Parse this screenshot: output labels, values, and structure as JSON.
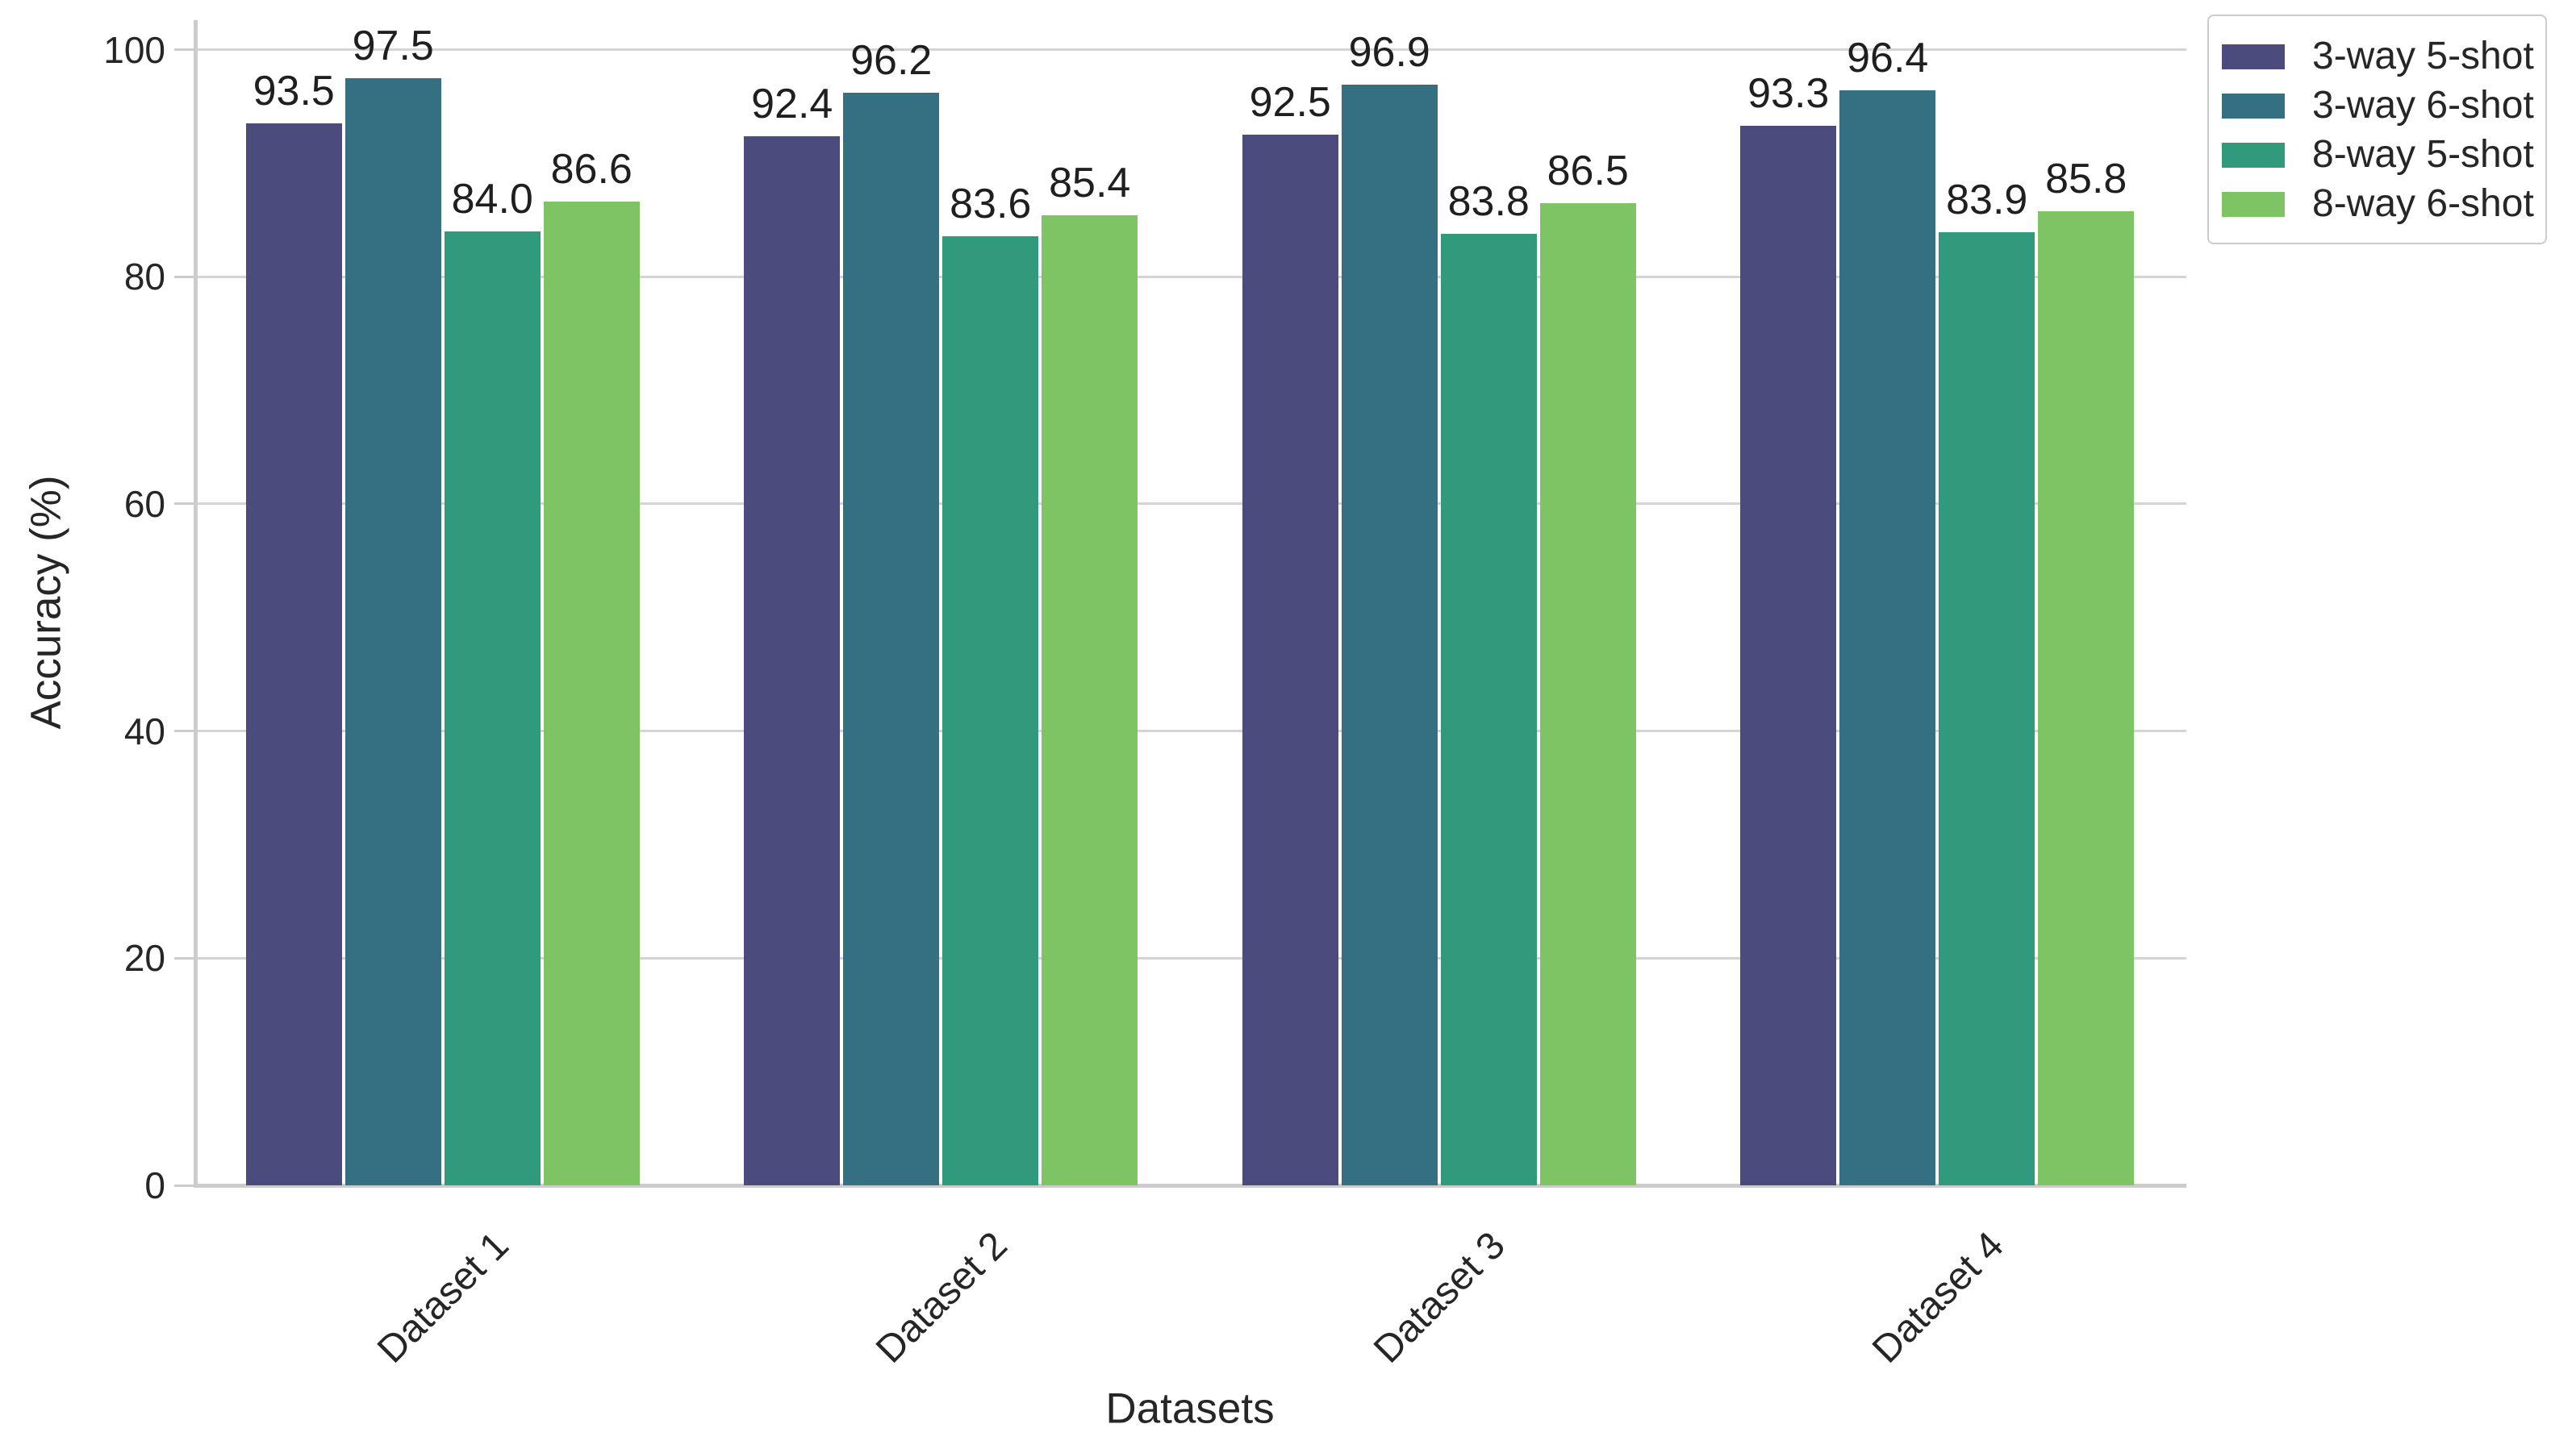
{
  "style": {
    "background": "#ffffff",
    "text_color": "#262626",
    "grid_color": "#d4d4d4",
    "spine_color": "#cccccc",
    "legend_border_color": "#cccccc"
  },
  "chart_data": {
    "type": "bar",
    "title": "",
    "xlabel": "Datasets",
    "ylabel": "Accuracy (%)",
    "categories": [
      "Dataset 1",
      "Dataset 2",
      "Dataset 3",
      "Dataset 4"
    ],
    "series": [
      {
        "name": "3-way 5-shot",
        "color": "#4c4b7e",
        "values": [
          93.5,
          92.4,
          92.5,
          93.3
        ],
        "labels": [
          "93.5",
          "92.4",
          "92.5",
          "93.3"
        ]
      },
      {
        "name": "3-way 6-shot",
        "color": "#357082",
        "values": [
          97.5,
          96.2,
          96.9,
          96.4
        ],
        "labels": [
          "97.5",
          "96.2",
          "96.9",
          "96.4"
        ]
      },
      {
        "name": "8-way 5-shot",
        "color": "#319a7d",
        "values": [
          84.0,
          83.6,
          83.8,
          83.9
        ],
        "labels": [
          "84.0",
          "83.6",
          "83.8",
          "83.9"
        ]
      },
      {
        "name": "8-way 6-shot",
        "color": "#7ec464",
        "values": [
          86.6,
          85.4,
          86.5,
          85.8
        ],
        "labels": [
          "86.6",
          "85.4",
          "86.5",
          "85.8"
        ]
      }
    ],
    "yticks": [
      0,
      20,
      40,
      60,
      80,
      100
    ],
    "ytick_labels": [
      "0",
      "20",
      "40",
      "60",
      "80",
      "100"
    ],
    "ylim": [
      0,
      102.6
    ],
    "grid": true,
    "legend_position": "upper-right-outside"
  }
}
